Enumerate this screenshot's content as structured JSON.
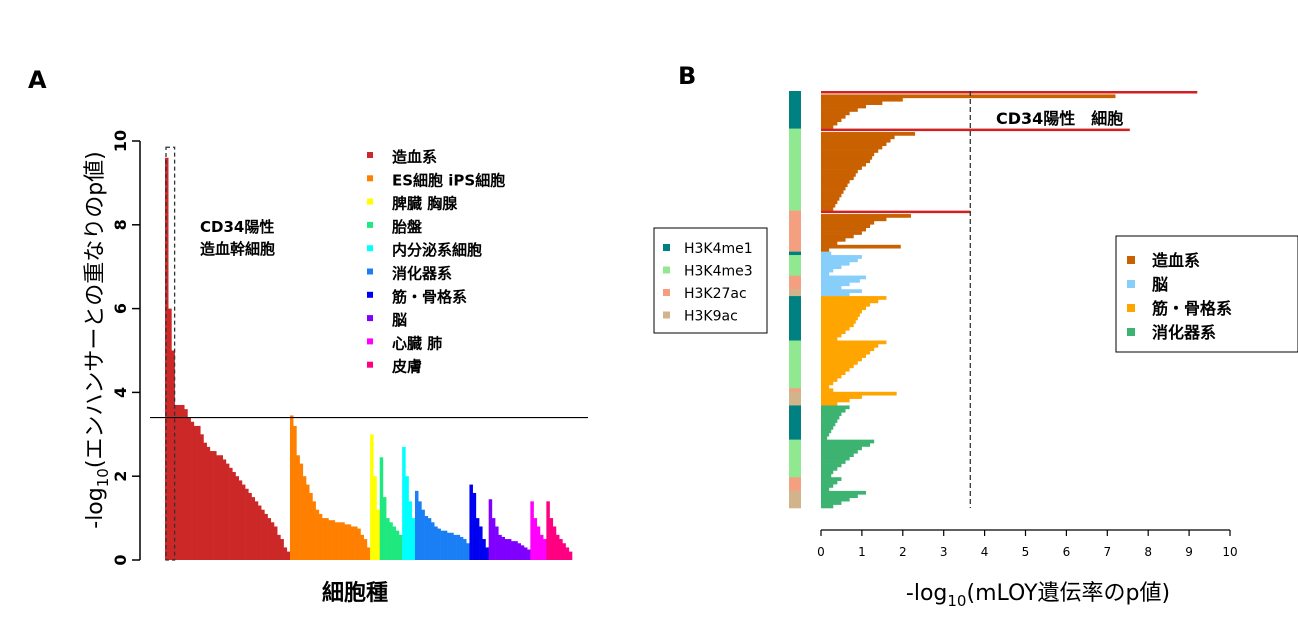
{
  "chart_data": [
    {
      "panel": "A",
      "type": "bar",
      "ylabel": "-log10(エンハンサーとの重なりのp値)",
      "xlabel": "細胞種",
      "ylim": [
        0,
        10
      ],
      "yticks": [
        0,
        2,
        4,
        6,
        8,
        10
      ],
      "threshold": 3.4,
      "highlight_label": [
        "CD34陽性",
        "造血幹細胞"
      ],
      "legend": [
        {
          "label": "造血系",
          "color": "#cc2828"
        },
        {
          "label": "ES細胞 iPS細胞",
          "color": "#ff8000"
        },
        {
          "label": "脾臓 胸腺",
          "color": "#ffff00"
        },
        {
          "label": "胎盤",
          "color": "#1fe87e"
        },
        {
          "label": "内分泌系細胞",
          "color": "#00ffff"
        },
        {
          "label": "消化器系",
          "color": "#1a7ff5"
        },
        {
          "label": "筋・骨格系",
          "color": "#0000f0"
        },
        {
          "label": "脳",
          "color": "#8000ff"
        },
        {
          "label": "心臓 肺",
          "color": "#ff00ff"
        },
        {
          "label": "皮膚",
          "color": "#ff0080"
        }
      ],
      "series": [
        {
          "name": "造血系",
          "values": [
            9.6,
            6.0,
            5.0,
            3.7,
            3.7,
            3.7,
            3.6,
            3.4,
            3.3,
            3.2,
            3.2,
            3.0,
            2.8,
            2.7,
            2.6,
            2.6,
            2.5,
            2.5,
            2.4,
            2.3,
            2.2,
            2.1,
            2.0,
            1.9,
            1.8,
            1.7,
            1.6,
            1.5,
            1.4,
            1.3,
            1.2,
            1.1,
            1.0,
            0.9,
            0.8,
            0.6,
            0.5,
            0.3,
            0.2
          ]
        },
        {
          "name": "ES細胞 iPS細胞",
          "values": [
            3.45,
            3.2,
            2.5,
            2.3,
            2.0,
            1.8,
            1.6,
            1.4,
            1.2,
            1.1,
            1.0,
            1.0,
            0.95,
            0.95,
            0.9,
            0.9,
            0.9,
            0.85,
            0.85,
            0.8,
            0.8,
            0.75,
            0.6,
            0.5,
            0.3
          ]
        },
        {
          "name": "脾臓 胸腺",
          "values": [
            3.0,
            2.0,
            1.2
          ]
        },
        {
          "name": "胎盤",
          "values": [
            2.45,
            1.5,
            1.0,
            0.9,
            0.8,
            0.7,
            0.6
          ]
        },
        {
          "name": "内分泌系細胞",
          "values": [
            2.7,
            2.0,
            1.4,
            1.0
          ]
        },
        {
          "name": "消化器系",
          "values": [
            1.65,
            1.4,
            1.2,
            1.05,
            1.0,
            0.9,
            0.8,
            0.75,
            0.7,
            0.7,
            0.65,
            0.65,
            0.6,
            0.6,
            0.55,
            0.5,
            0.4
          ]
        },
        {
          "name": "筋・骨格系",
          "values": [
            1.8,
            1.6,
            1.0,
            0.8,
            0.5,
            0.3
          ]
        },
        {
          "name": "脳",
          "values": [
            1.45,
            1.0,
            0.8,
            0.6,
            0.55,
            0.5,
            0.5,
            0.45,
            0.45,
            0.4,
            0.35,
            0.3,
            0.25
          ]
        },
        {
          "name": "心臓 肺",
          "values": [
            1.4,
            1.0,
            0.8,
            0.6,
            0.5
          ]
        },
        {
          "name": "皮膚",
          "values": [
            1.4,
            1.0,
            0.8,
            0.6,
            0.5,
            0.4,
            0.3,
            0.2
          ]
        }
      ]
    },
    {
      "panel": "B",
      "type": "bar",
      "orientation": "horizontal",
      "xlabel": "-log10(mLOY遺伝率のp値)",
      "xlim": [
        0,
        10
      ],
      "xticks": [
        0,
        1,
        2,
        3,
        4,
        5,
        6,
        7,
        8,
        9,
        10
      ],
      "threshold": 3.65,
      "annotation": "CD34陽性　細胞",
      "mark_legend": [
        {
          "label": "H3K4me1",
          "color": "#008080"
        },
        {
          "label": "H3K4me3",
          "color": "#90e890"
        },
        {
          "label": "H3K27ac",
          "color": "#f4a080"
        },
        {
          "label": "H3K9ac",
          "color": "#d2b48c"
        }
      ],
      "tissue_legend": [
        {
          "label": "造血系",
          "color": "#c96100"
        },
        {
          "label": "脳",
          "color": "#87cefa"
        },
        {
          "label": "筋・骨格系",
          "color": "#ffa500"
        },
        {
          "label": "消化器系",
          "color": "#3cb371"
        }
      ],
      "highlight_values": [
        9.2,
        7.55,
        3.65
      ],
      "groups": [
        {
          "tissue": "造血系",
          "mark": "H3K4me1",
          "values": [
            9.2,
            7.2,
            2.0,
            1.5,
            1.1,
            0.9,
            0.7,
            0.6,
            0.5,
            0.4,
            0.3
          ]
        },
        {
          "tissue": "造血系",
          "mark": "H3K4me3",
          "values": [
            7.55,
            2.3,
            1.8,
            1.7,
            1.6,
            1.5,
            1.4,
            1.3,
            1.25,
            1.2,
            1.1,
            1.0,
            0.9,
            0.85,
            0.8,
            0.7,
            0.65,
            0.6,
            0.55,
            0.5,
            0.45,
            0.4,
            0.35,
            0.3
          ]
        },
        {
          "tissue": "造血系",
          "mark": "H3K27ac",
          "values": [
            3.65,
            2.2,
            1.6,
            1.3,
            1.2,
            1.1,
            1.0,
            0.8,
            0.6,
            0.4
          ]
        },
        {
          "tissue": "造血系",
          "mark": "H3K27ac",
          "values": [
            1.95,
            0.2
          ]
        },
        {
          "tissue": "脳",
          "mark": "H3K4me1",
          "values": [
            0.25
          ]
        },
        {
          "tissue": "脳",
          "mark": "H3K4me3",
          "values": [
            1.0,
            0.9,
            0.7,
            0.5,
            0.3,
            0.2
          ]
        },
        {
          "tissue": "脳",
          "mark": "H3K27ac",
          "values": [
            1.1,
            0.95,
            0.7,
            0.5
          ]
        },
        {
          "tissue": "脳",
          "mark": "H3K9ac",
          "values": [
            1.0,
            0.7
          ]
        },
        {
          "tissue": "筋・骨格系",
          "mark": "H3K4me1",
          "values": [
            1.6,
            1.4,
            1.2,
            1.1,
            1.0,
            0.95,
            0.9,
            0.85,
            0.8,
            0.7,
            0.6,
            0.5,
            0.4
          ]
        },
        {
          "tissue": "筋・骨格系",
          "mark": "H3K4me3",
          "values": [
            1.6,
            1.4,
            1.3,
            1.2,
            1.1,
            1.0,
            0.9,
            0.8,
            0.7,
            0.6,
            0.5,
            0.4,
            0.3,
            0.2
          ]
        },
        {
          "tissue": "筋・骨格系",
          "mark": "H3K27ac",
          "values": [
            0.3
          ]
        },
        {
          "tissue": "筋・骨格系",
          "mark": "H3K9ac",
          "values": [
            1.85,
            1.0,
            0.7,
            0.4
          ]
        },
        {
          "tissue": "消化器系",
          "mark": "H3K4me1",
          "values": [
            0.7,
            0.6,
            0.5,
            0.45,
            0.4,
            0.35,
            0.3,
            0.25,
            0.2,
            0.15
          ]
        },
        {
          "tissue": "消化器系",
          "mark": "H3K4me3",
          "values": [
            1.3,
            1.2,
            1.0,
            0.9,
            0.8,
            0.7,
            0.6,
            0.5,
            0.4,
            0.3,
            0.25
          ]
        },
        {
          "tissue": "消化器系",
          "mark": "H3K27ac",
          "values": [
            0.5,
            0.4,
            0.3,
            0.2
          ]
        },
        {
          "tissue": "消化器系",
          "mark": "H3K9ac",
          "values": [
            1.1,
            0.9,
            0.7,
            0.5,
            0.3
          ]
        }
      ]
    }
  ]
}
